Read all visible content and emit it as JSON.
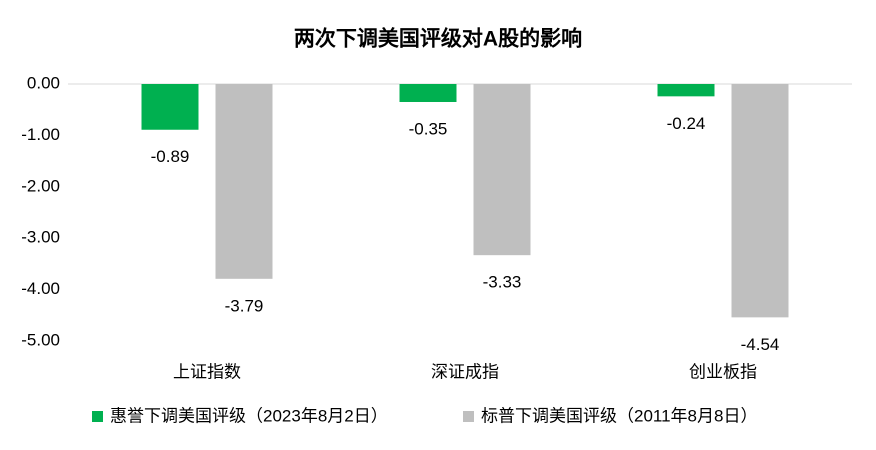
{
  "chart_data": {
    "type": "bar",
    "title": "两次下调美国评级对A股的影响",
    "categories": [
      "上证指数",
      "深证成指",
      "创业板指"
    ],
    "series": [
      {
        "name": "惠誉下调美国评级（2023年8月2日）",
        "color": "#00b050",
        "values": [
          -0.89,
          -0.35,
          -0.24
        ]
      },
      {
        "name": "标普下调美国评级（2011年8月8日）",
        "color": "#bfbfbf",
        "values": [
          -3.79,
          -3.33,
          -4.54
        ]
      }
    ],
    "ylim": [
      -5,
      0
    ],
    "yticks": [
      {
        "value": 0,
        "label": "0.00"
      },
      {
        "value": -1,
        "label": "-1.00"
      },
      {
        "value": -2,
        "label": "-2.00"
      },
      {
        "value": -3,
        "label": "-3.00"
      },
      {
        "value": -4,
        "label": "-4.00"
      },
      {
        "value": -5,
        "label": "-5.00"
      }
    ],
    "grid": false,
    "legend": "bottom"
  }
}
